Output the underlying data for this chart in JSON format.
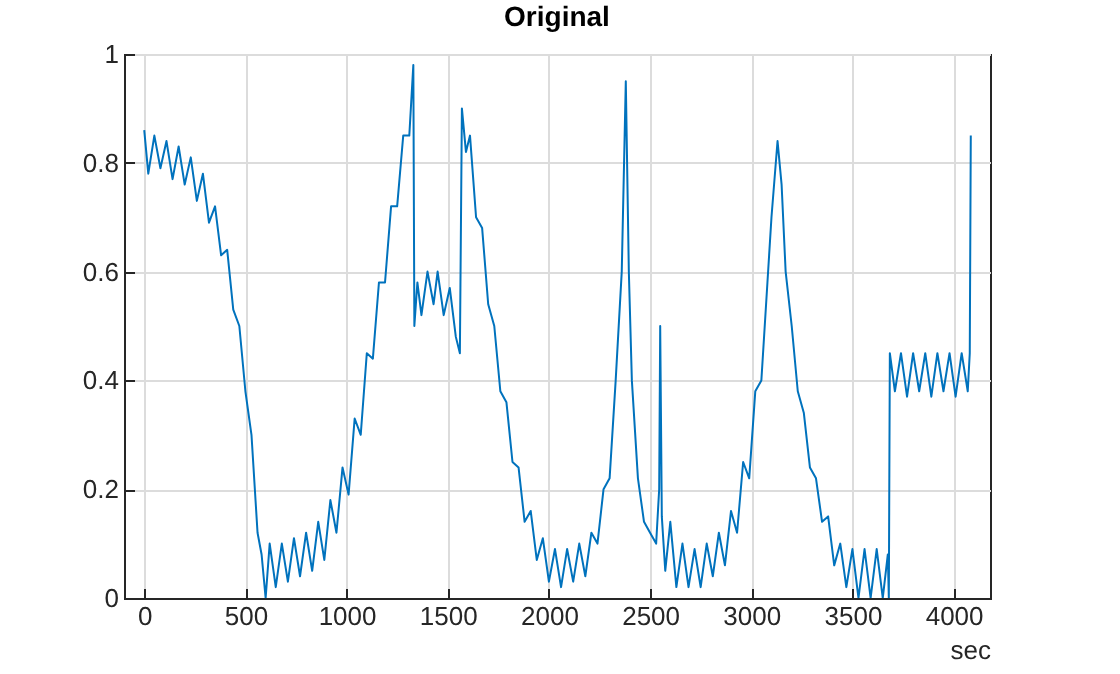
{
  "chart_data": {
    "type": "line",
    "title": "Original",
    "xlabel": "sec",
    "xlim": [
      -100,
      4180
    ],
    "ylim": [
      0,
      1
    ],
    "xticks": [
      0,
      500,
      1000,
      1500,
      2000,
      2500,
      3000,
      3500,
      4000
    ],
    "yticks": [
      0,
      0.2,
      0.4,
      0.6,
      0.8,
      1
    ],
    "grid": true,
    "series": [
      {
        "color": "#0072bd",
        "x": [
          0,
          20,
          50,
          80,
          110,
          140,
          170,
          200,
          230,
          260,
          290,
          320,
          350,
          380,
          410,
          440,
          470,
          500,
          530,
          560,
          580,
          600,
          620,
          650,
          680,
          710,
          740,
          770,
          800,
          830,
          860,
          890,
          920,
          950,
          980,
          1010,
          1040,
          1070,
          1100,
          1130,
          1160,
          1190,
          1220,
          1250,
          1280,
          1310,
          1330,
          1335,
          1350,
          1370,
          1400,
          1430,
          1450,
          1480,
          1510,
          1540,
          1560,
          1570,
          1590,
          1610,
          1640,
          1670,
          1700,
          1730,
          1760,
          1790,
          1820,
          1850,
          1880,
          1910,
          1940,
          1970,
          2000,
          2030,
          2060,
          2090,
          2120,
          2150,
          2180,
          2210,
          2240,
          2270,
          2300,
          2330,
          2360,
          2380,
          2395,
          2410,
          2440,
          2470,
          2500,
          2530,
          2545,
          2550,
          2558,
          2575,
          2600,
          2630,
          2660,
          2690,
          2720,
          2750,
          2780,
          2810,
          2840,
          2870,
          2900,
          2930,
          2960,
          2990,
          3020,
          3050,
          3080,
          3100,
          3130,
          3150,
          3170,
          3200,
          3230,
          3260,
          3290,
          3320,
          3350,
          3380,
          3410,
          3440,
          3470,
          3500,
          3530,
          3560,
          3590,
          3620,
          3650,
          3675,
          3680,
          3685,
          3710,
          3740,
          3770,
          3800,
          3830,
          3860,
          3890,
          3920,
          3950,
          3980,
          4010,
          4040,
          4070,
          4080,
          4085
        ],
        "values": [
          0.86,
          0.78,
          0.85,
          0.79,
          0.84,
          0.77,
          0.83,
          0.76,
          0.81,
          0.73,
          0.78,
          0.69,
          0.72,
          0.63,
          0.64,
          0.53,
          0.5,
          0.38,
          0.3,
          0.12,
          0.08,
          0.0,
          0.1,
          0.02,
          0.1,
          0.03,
          0.11,
          0.04,
          0.12,
          0.05,
          0.14,
          0.07,
          0.18,
          0.12,
          0.24,
          0.19,
          0.33,
          0.3,
          0.45,
          0.44,
          0.58,
          0.58,
          0.72,
          0.72,
          0.85,
          0.85,
          0.98,
          0.5,
          0.58,
          0.52,
          0.6,
          0.54,
          0.6,
          0.52,
          0.57,
          0.48,
          0.45,
          0.9,
          0.82,
          0.85,
          0.7,
          0.68,
          0.54,
          0.5,
          0.38,
          0.36,
          0.25,
          0.24,
          0.14,
          0.16,
          0.07,
          0.11,
          0.03,
          0.09,
          0.02,
          0.09,
          0.03,
          0.1,
          0.04,
          0.12,
          0.1,
          0.2,
          0.22,
          0.4,
          0.6,
          0.95,
          0.6,
          0.4,
          0.22,
          0.14,
          0.12,
          0.1,
          0.2,
          0.5,
          0.15,
          0.05,
          0.14,
          0.02,
          0.1,
          0.02,
          0.09,
          0.02,
          0.1,
          0.04,
          0.12,
          0.06,
          0.16,
          0.12,
          0.25,
          0.22,
          0.38,
          0.4,
          0.58,
          0.7,
          0.84,
          0.76,
          0.6,
          0.5,
          0.38,
          0.34,
          0.24,
          0.22,
          0.14,
          0.15,
          0.06,
          0.1,
          0.02,
          0.09,
          0.0,
          0.09,
          0.0,
          0.09,
          0.0,
          0.08,
          0.0,
          0.45,
          0.38,
          0.45,
          0.37,
          0.45,
          0.38,
          0.45,
          0.37,
          0.45,
          0.38,
          0.45,
          0.37,
          0.45,
          0.38,
          0.45,
          0.85
        ]
      }
    ]
  }
}
